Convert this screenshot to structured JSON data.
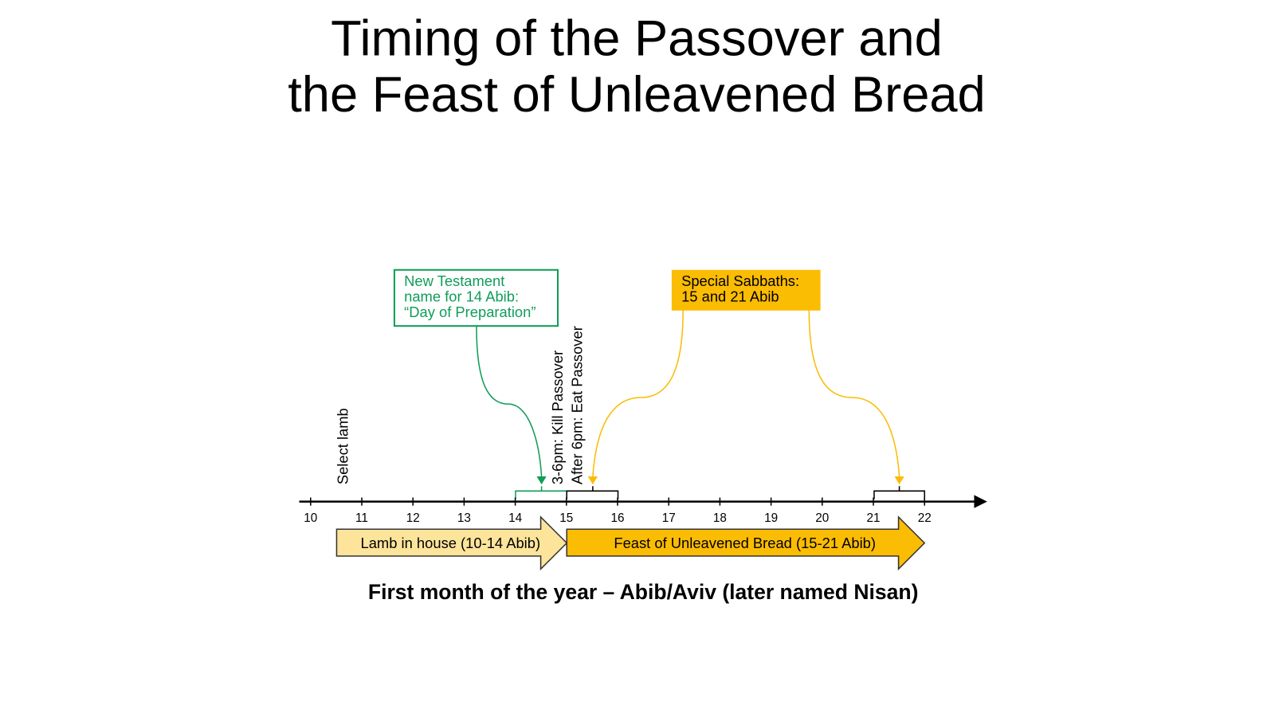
{
  "title": {
    "line1": "Timing of the Passover and",
    "line2": "the Feast of Unleavened Bread"
  },
  "timeline": {
    "days": [
      "10",
      "11",
      "12",
      "13",
      "14",
      "15",
      "16",
      "17",
      "18",
      "19",
      "20",
      "21",
      "22"
    ]
  },
  "events": {
    "select": "Select lamb",
    "kill": "3-6pm: Kill Passover",
    "eat": "After 6pm: Eat Passover"
  },
  "callouts": {
    "preparation": {
      "lines": [
        "New Testament",
        "name for 14 Abib:",
        "“Day of Preparation”"
      ]
    },
    "sabbaths": {
      "lines": [
        "Special Sabbaths:",
        "15 and 21 Abib"
      ]
    }
  },
  "periods": {
    "lamb": "Lamb in house (10-14 Abib)",
    "feast": "Feast of Unleavened Bread (15-21 Abib)"
  },
  "caption": "First month of the year – Abib/Aviv (later named Nisan)"
}
